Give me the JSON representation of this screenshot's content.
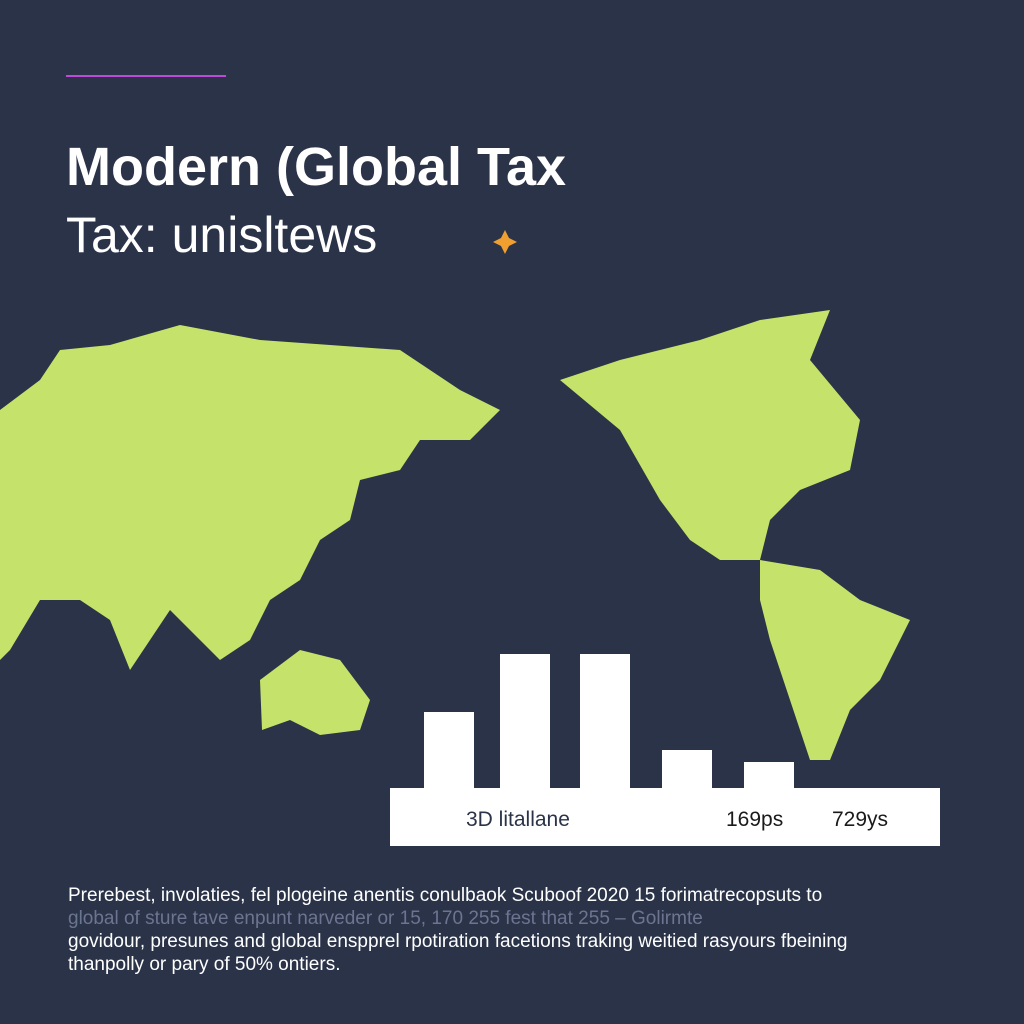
{
  "header": {
    "title": "Modern (Global Tax",
    "subtitle": "Tax: unisltews"
  },
  "chart_data": {
    "type": "bar",
    "values": [
      78,
      136,
      136,
      40,
      28
    ],
    "color": "#ffffff"
  },
  "legend_strip": {
    "label": "3D litallane",
    "stats": [
      "169ps",
      "729ys"
    ]
  },
  "body": {
    "lines": [
      "Prerebest, involaties, fel plogeine anentis conulbaok Scuboof 2020 15 forimatrecopsuts to",
      "global of sture tave enpunt narveder or 15, 170 255 fest that 255 – Golirmte",
      "govidour, presunes and global enspprel rpotiration facetions traking weitied rasyours fbeining",
      "thanpolly or pary of 50% ontiers."
    ]
  }
}
